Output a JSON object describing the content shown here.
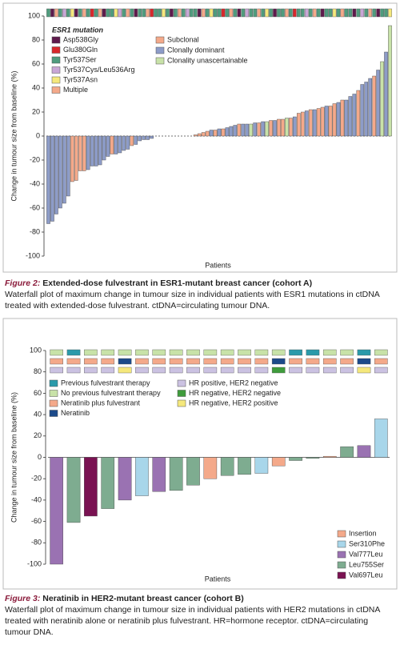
{
  "chart_data": [
    {
      "type": "waterfall",
      "y_label": "Change in tumour size from baseline (%)",
      "x_label": "Patients",
      "ylim": [
        -100,
        100
      ],
      "yticks": [
        100,
        80,
        60,
        40,
        20,
        0,
        -20,
        -40,
        -60,
        -80,
        -100
      ],
      "zero_line_style": "dashed",
      "values": [
        -73,
        -71,
        -65,
        -60,
        -56,
        -50,
        -38,
        -37,
        -29,
        -29,
        -28,
        -25,
        -25,
        -24,
        -20,
        -17,
        -15,
        -15,
        -14,
        -12,
        -11,
        -8,
        -7,
        -4,
        -3,
        -3,
        -2,
        0,
        0,
        0,
        0,
        0,
        0,
        0,
        0,
        0,
        0,
        1,
        2,
        3,
        4,
        5,
        5,
        6,
        6,
        7,
        8,
        9,
        10,
        10,
        10,
        10,
        11,
        11,
        12,
        12,
        13,
        13,
        14,
        14,
        15,
        15,
        16,
        19,
        20,
        21,
        22,
        22,
        23,
        24,
        25,
        25,
        27,
        28,
        30,
        30,
        33,
        35,
        38,
        43,
        45,
        48,
        50,
        55,
        62,
        70,
        92
      ],
      "bar_groups": {
        "items": [
          {
            "name": "Subclonal",
            "color": "#f4a98a"
          },
          {
            "name": "Clonally dominant",
            "color": "#8d9cc8"
          },
          {
            "name": "Clonality unascertainable",
            "color": "#c8e2a8"
          }
        ],
        "index": [
          1,
          1,
          1,
          1,
          1,
          1,
          0,
          0,
          0,
          0,
          1,
          1,
          1,
          1,
          1,
          1,
          0,
          1,
          1,
          1,
          1,
          0,
          1,
          1,
          1,
          1,
          1,
          1,
          1,
          1,
          1,
          1,
          1,
          1,
          1,
          1,
          1,
          0,
          0,
          0,
          0,
          1,
          0,
          1,
          0,
          1,
          1,
          1,
          0,
          1,
          1,
          2,
          1,
          0,
          1,
          2,
          0,
          1,
          0,
          0,
          2,
          0,
          1,
          0,
          0,
          1,
          0,
          1,
          0,
          0,
          1,
          0,
          0,
          1,
          0,
          1,
          1,
          1,
          0,
          1,
          1,
          1,
          0,
          1,
          2,
          1,
          2
        ]
      },
      "strips": [
        {
          "title": "ESR1 mutation",
          "items": [
            {
              "name": "Asp538Gly",
              "color": "#5e1a4c"
            },
            {
              "name": "Glu380Gln",
              "color": "#d8282c"
            },
            {
              "name": "Tyr537Ser",
              "color": "#4f9c7e"
            },
            {
              "name": "Tyr537Cys/Leu536Arg",
              "color": "#c8a6d6"
            },
            {
              "name": "Tyr537Asn",
              "color": "#f5e87c"
            },
            {
              "name": "Multiple",
              "color": "#f4a98a"
            }
          ],
          "index": [
            2,
            0,
            5,
            2,
            3,
            2,
            4,
            0,
            2,
            5,
            2,
            1,
            2,
            5,
            0,
            2,
            2,
            4,
            3,
            2,
            5,
            2,
            0,
            2,
            2,
            5,
            1,
            2,
            2,
            4,
            2,
            0,
            2,
            5,
            2,
            3,
            2,
            2,
            0,
            5,
            2,
            4,
            2,
            2,
            1,
            2,
            5,
            2,
            0,
            2,
            3,
            2,
            2,
            5,
            2,
            4,
            2,
            0,
            2,
            2,
            5,
            2,
            1,
            2,
            2,
            3,
            2,
            5,
            2,
            0,
            2,
            2,
            4,
            2,
            5,
            2,
            2,
            0,
            2,
            3,
            2,
            5,
            2,
            0,
            2,
            2,
            4
          ]
        }
      ]
    },
    {
      "type": "waterfall",
      "y_label": "Change in tumour size from baseline (%)",
      "x_label": "Patients",
      "ylim": [
        -100,
        100
      ],
      "yticks": [
        100,
        80,
        60,
        40,
        20,
        0,
        -20,
        -40,
        -60,
        -80,
        -100
      ],
      "zero_line_style": "solid",
      "values": [
        -100,
        -61,
        -55,
        -48,
        -40,
        -36,
        -32,
        -31,
        -26,
        -20,
        -17,
        -16,
        -15,
        -8,
        -3,
        -1,
        1,
        10,
        11,
        36
      ],
      "bar_groups": {
        "items": [
          {
            "name": "Insertion",
            "color": "#f4a98a"
          },
          {
            "name": "Ser310Phe",
            "color": "#a8d6ea"
          },
          {
            "name": "Val777Leu",
            "color": "#9a72b2"
          },
          {
            "name": "Leu755Ser",
            "color": "#7eac90"
          },
          {
            "name": "Val697Leu",
            "color": "#7a1252"
          }
        ],
        "index": [
          2,
          3,
          4,
          3,
          2,
          1,
          2,
          3,
          3,
          0,
          3,
          3,
          1,
          0,
          3,
          3,
          0,
          3,
          2,
          1
        ]
      },
      "strips": [
        {
          "items": [
            {
              "name": "Previous fulvestrant therapy",
              "color": "#2a9aaa"
            },
            {
              "name": "No previous fulvestrant therapy",
              "color": "#c8e2a8"
            }
          ],
          "index": [
            1,
            0,
            1,
            1,
            1,
            1,
            1,
            1,
            1,
            1,
            1,
            1,
            1,
            1,
            0,
            0,
            1,
            1,
            0,
            1
          ]
        },
        {
          "items": [
            {
              "name": "Neratinib plus fulvestrant",
              "color": "#f4a98a"
            },
            {
              "name": "Neratinib",
              "color": "#1c4a8a"
            }
          ],
          "index": [
            0,
            0,
            0,
            0,
            1,
            0,
            0,
            0,
            0,
            0,
            0,
            0,
            0,
            1,
            0,
            0,
            0,
            0,
            1,
            0
          ]
        },
        {
          "items": [
            {
              "name": "HR positive, HER2 negative",
              "color": "#cbc2e2"
            },
            {
              "name": "HR negative, HER2 negative",
              "color": "#3f9c3c"
            },
            {
              "name": "HR negative, HER2 positive",
              "color": "#f5e87c"
            }
          ],
          "index": [
            0,
            0,
            0,
            0,
            2,
            0,
            0,
            0,
            0,
            0,
            0,
            0,
            0,
            1,
            0,
            0,
            0,
            0,
            2,
            0
          ]
        }
      ]
    }
  ],
  "captions": [
    {
      "label": "Figure 2:",
      "title": "Extended-dose fulvestrant in ESR1-mutant breast cancer (cohort A)",
      "text": "Waterfall plot of maximum change in tumour size in individual patients with ESR1 mutations in ctDNA treated with extended-dose fulvestrant. ctDNA=circulating tumour DNA."
    },
    {
      "label": "Figure 3:",
      "title": "Neratinib in HER2-mutant breast cancer (cohort B)",
      "text": "Waterfall plot of maximum change in tumour size in individual patients with HER2 mutations in ctDNA treated with neratinib alone or neratinib plus fulvestrant. HR=hormone receptor. ctDNA=circulating tumour DNA."
    }
  ]
}
